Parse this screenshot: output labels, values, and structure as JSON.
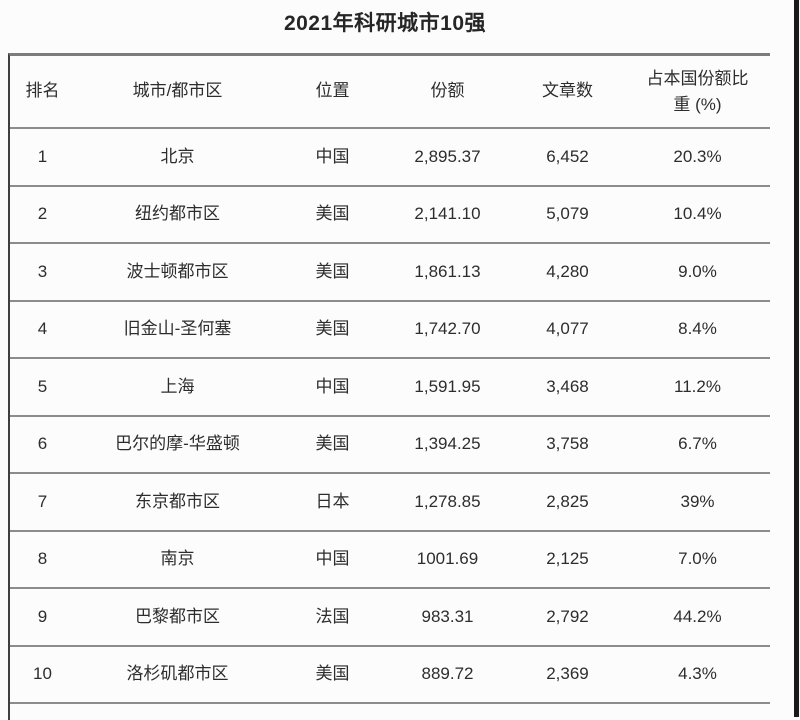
{
  "chart_data": {
    "type": "table",
    "title": "2021年科研城市10强",
    "columns": [
      "排名",
      "城市/都市区",
      "位置",
      "份额",
      "文章数",
      "占本国份额比重 (%)"
    ],
    "pct_header_display": {
      "line1": "占本国份额比",
      "line2": "重 (%)"
    },
    "rows": [
      [
        "1",
        "北京",
        "中国",
        "2,895.37",
        "6,452",
        "20.3%"
      ],
      [
        "2",
        "纽约都市区",
        "美国",
        "2,141.10",
        "5,079",
        "10.4%"
      ],
      [
        "3",
        "波士顿都市区",
        "美国",
        "1,861.13",
        "4,280",
        "9.0%"
      ],
      [
        "4",
        "旧金山-圣何塞",
        "美国",
        "1,742.70",
        "4,077",
        "8.4%"
      ],
      [
        "5",
        "上海",
        "中国",
        "1,591.95",
        "3,468",
        "11.2%"
      ],
      [
        "6",
        "巴尔的摩-华盛顿",
        "美国",
        "1,394.25",
        "3,758",
        "6.7%"
      ],
      [
        "7",
        "东京都市区",
        "日本",
        "1,278.85",
        "2,825",
        "39%"
      ],
      [
        "8",
        "南京",
        "中国",
        "1001.69",
        "2,125",
        "7.0%"
      ],
      [
        "9",
        "巴黎都市区",
        "法国",
        "983.31",
        "2,792",
        "44.2%"
      ],
      [
        "10",
        "洛杉矶都市区",
        "美国",
        "889.72",
        "2,369",
        "4.3%"
      ]
    ]
  },
  "colors": {
    "background": "#fcfcfc",
    "text": "#2d2d2d",
    "row_separator": "#8c8c8c",
    "table_top_border": "#7c7c7c",
    "table_left_border": "#3f3f3f",
    "photo_right_edge": "#1a1a1a"
  }
}
